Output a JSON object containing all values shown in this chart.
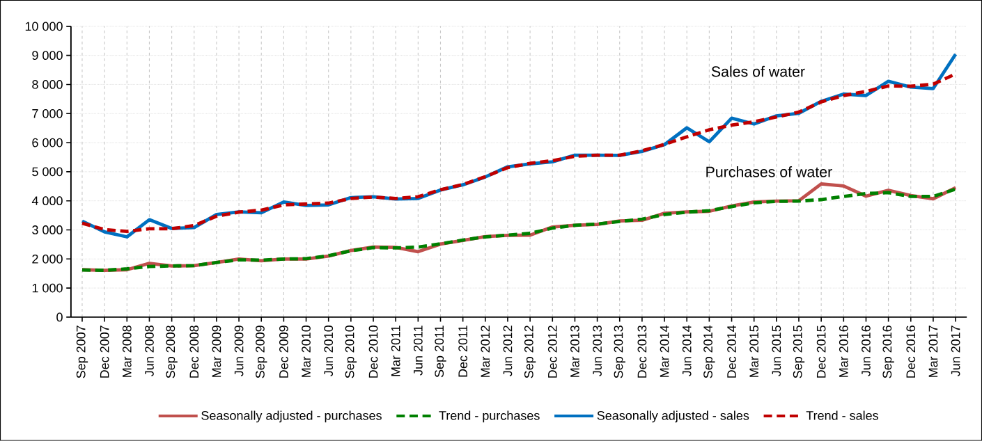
{
  "chart_data": {
    "type": "line",
    "categories": [
      "Sep 2007",
      "Dec 2007",
      "Mar 2008",
      "Jun 2008",
      "Sep 2008",
      "Dec 2008",
      "Mar 2009",
      "Jun 2009",
      "Sep 2009",
      "Dec 2009",
      "Mar 2010",
      "Jun 2010",
      "Sep 2010",
      "Dec 2010",
      "Mar 2011",
      "Jun 2011",
      "Sep 2011",
      "Dec 2011",
      "Mar 2012",
      "Jun 2012",
      "Sep 2012",
      "Dec 2012",
      "Mar 2013",
      "Jun 2013",
      "Sep 2013",
      "Dec 2013",
      "Mar 2014",
      "Jun 2014",
      "Sep 2014",
      "Dec 2014",
      "Mar 2015",
      "Jun 2015",
      "Sep 2015",
      "Dec 2015",
      "Mar 2016",
      "Jun 2016",
      "Sep 2016",
      "Dec 2016",
      "Mar 2017",
      "Jun 2017"
    ],
    "series": [
      {
        "name": "Seasonally adjusted - purchases",
        "color": "#c0504d",
        "line_style": "solid",
        "values": [
          1630,
          1610,
          1630,
          1850,
          1760,
          1770,
          1880,
          2000,
          1940,
          2000,
          2000,
          2100,
          2290,
          2410,
          2400,
          2250,
          2510,
          2640,
          2770,
          2810,
          2820,
          3100,
          3160,
          3190,
          3310,
          3330,
          3570,
          3620,
          3640,
          3820,
          3960,
          3990,
          4000,
          4580,
          4510,
          4160,
          4360,
          4180,
          4070,
          4450
        ]
      },
      {
        "name": "Trend - purchases",
        "color": "#008000",
        "line_style": "dashed",
        "values": [
          1620,
          1610,
          1660,
          1740,
          1760,
          1770,
          1880,
          1970,
          1960,
          2000,
          2010,
          2110,
          2280,
          2390,
          2380,
          2410,
          2520,
          2650,
          2760,
          2820,
          2880,
          3060,
          3160,
          3200,
          3290,
          3370,
          3530,
          3610,
          3660,
          3800,
          3930,
          3980,
          3990,
          4040,
          4150,
          4250,
          4280,
          4150,
          4150,
          4400
        ]
      },
      {
        "name": "Seasonally adjusted - sales",
        "color": "#0070c0",
        "line_style": "solid",
        "values": [
          3300,
          2930,
          2760,
          3350,
          3050,
          3080,
          3530,
          3620,
          3590,
          3960,
          3840,
          3860,
          4110,
          4140,
          4060,
          4080,
          4370,
          4550,
          4820,
          5170,
          5270,
          5340,
          5570,
          5570,
          5560,
          5700,
          5930,
          6510,
          6030,
          6840,
          6640,
          6920,
          7010,
          7420,
          7670,
          7620,
          8110,
          7910,
          7860,
          9040
        ]
      },
      {
        "name": "Trend - sales",
        "color": "#c00000",
        "line_style": "dashed",
        "values": [
          3230,
          3010,
          2950,
          3040,
          3040,
          3150,
          3470,
          3610,
          3680,
          3860,
          3890,
          3920,
          4080,
          4130,
          4080,
          4140,
          4380,
          4560,
          4830,
          5140,
          5290,
          5380,
          5530,
          5570,
          5570,
          5720,
          5940,
          6200,
          6440,
          6600,
          6720,
          6880,
          7050,
          7400,
          7620,
          7760,
          7950,
          7940,
          8010,
          8360
        ]
      }
    ],
    "ylim": [
      0,
      10000
    ],
    "yticks": [
      {
        "value": 0,
        "label": "0"
      },
      {
        "value": 1000,
        "label": "1 000"
      },
      {
        "value": 2000,
        "label": "2 000"
      },
      {
        "value": 3000,
        "label": "3 000"
      },
      {
        "value": 4000,
        "label": "4 000"
      },
      {
        "value": 5000,
        "label": "5 000"
      },
      {
        "value": 6000,
        "label": "6 000"
      },
      {
        "value": 7000,
        "label": "7 000"
      },
      {
        "value": 8000,
        "label": "8 000"
      },
      {
        "value": 9000,
        "label": "9 000"
      },
      {
        "value": 10000,
        "label": "10 000"
      }
    ],
    "annotations": [
      "Sales of water",
      "Purchases of water"
    ],
    "grid": true,
    "legend": "bottom",
    "marker": "none"
  }
}
